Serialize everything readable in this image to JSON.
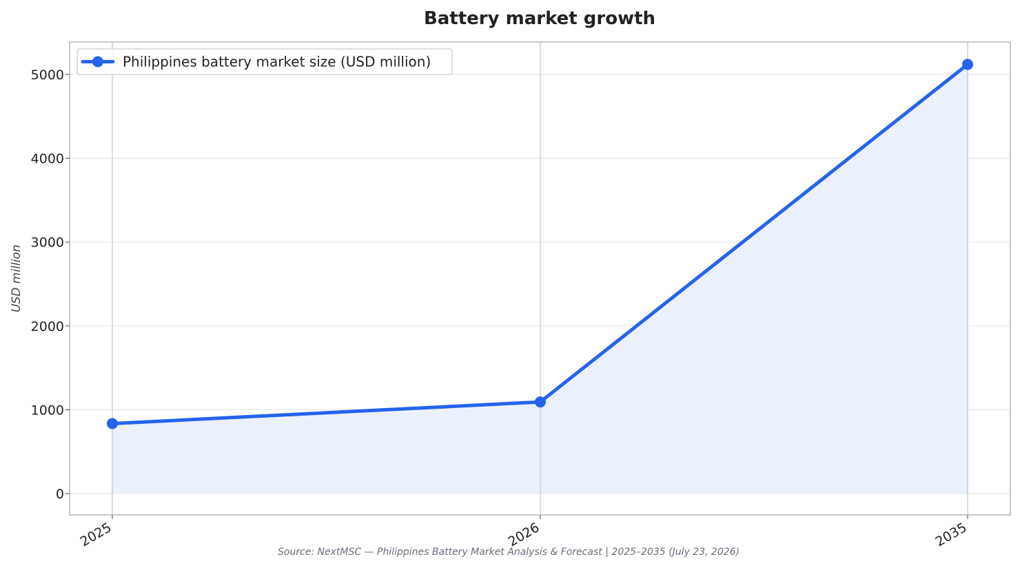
{
  "chart_data": {
    "type": "line",
    "title": "Battery market growth",
    "ylabel": "USD million",
    "xlabel": "",
    "x": [
      "2025",
      "2026",
      "2035"
    ],
    "series": [
      {
        "name": "Philippines battery market size (USD million)",
        "values": [
          835,
          1093,
          5120
        ]
      }
    ],
    "ylim": [
      -250,
      5370
    ],
    "yticks": [
      0,
      1000,
      2000,
      3000,
      4000,
      5000
    ],
    "area_fill": true,
    "grid": true,
    "legend_position": "top-left",
    "source": "Source: NextMSC — Philippines Battery Market Analysis & Forecast | 2025–2035 (July 23, 2026)",
    "colors": {
      "line": "#2563eb",
      "fill": "#eaf0fc",
      "grid": "#e8e8e8",
      "frame": "#c8c8c8",
      "vertical_grid": "#c9c9cf"
    }
  }
}
